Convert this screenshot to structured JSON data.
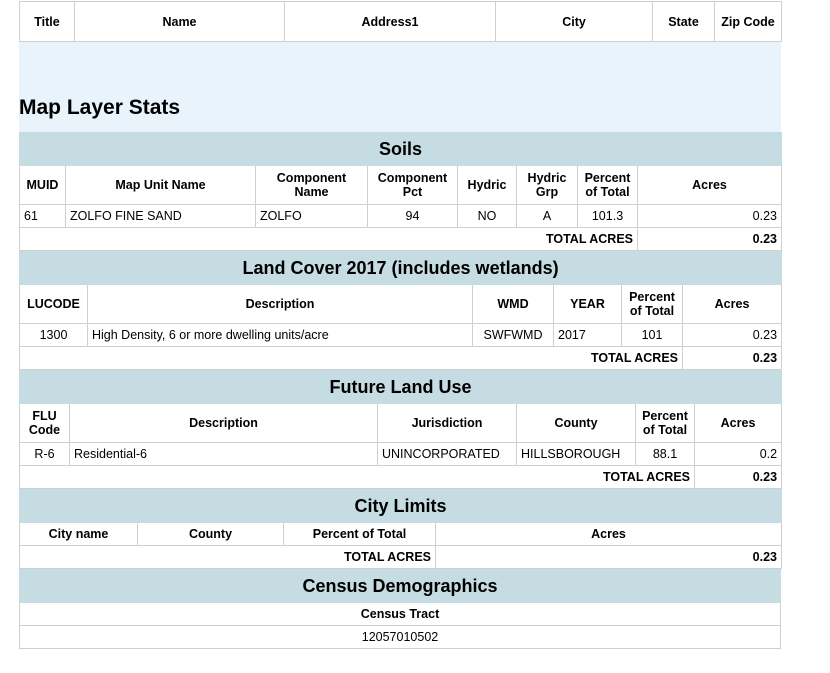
{
  "owner": {
    "headers": [
      "Title",
      "Name",
      "Address1",
      "City",
      "State",
      "Zip Code"
    ]
  },
  "title": "Map Layer Stats",
  "total_label": "TOTAL ACRES",
  "soils": {
    "heading": "Soils",
    "headers": [
      "MUID",
      "Map Unit Name",
      "Component Name",
      "Component Pct",
      "Hydric",
      "Hydric Grp",
      "Percent of Total",
      "Acres"
    ],
    "row": [
      "61",
      "ZOLFO FINE SAND",
      "ZOLFO",
      "94",
      "NO",
      "A",
      "101.3",
      "0.23"
    ],
    "total": "0.23"
  },
  "landcover": {
    "heading": "Land Cover 2017 (includes wetlands)",
    "headers": [
      "LUCODE",
      "Description",
      "WMD",
      "YEAR",
      "Percent of Total",
      "Acres"
    ],
    "row": [
      "1300",
      "High Density, 6 or more dwelling units/acre",
      "SWFWMD",
      "2017",
      "101",
      "0.23"
    ],
    "total": "0.23"
  },
  "flu": {
    "heading": "Future Land Use",
    "headers": [
      "FLU Code",
      "Description",
      "Jurisdiction",
      "County",
      "Percent of Total",
      "Acres"
    ],
    "row": [
      "R-6",
      "Residential-6",
      "UNINCORPORATED",
      "HILLSBOROUGH",
      "88.1",
      "0.2"
    ],
    "total": "0.23"
  },
  "city": {
    "heading": "City Limits",
    "headers": [
      "City name",
      "County",
      "Percent of Total",
      "Acres"
    ],
    "total": "0.23"
  },
  "census": {
    "heading": "Census Demographics",
    "header": "Census Tract",
    "value": "12057010502"
  }
}
